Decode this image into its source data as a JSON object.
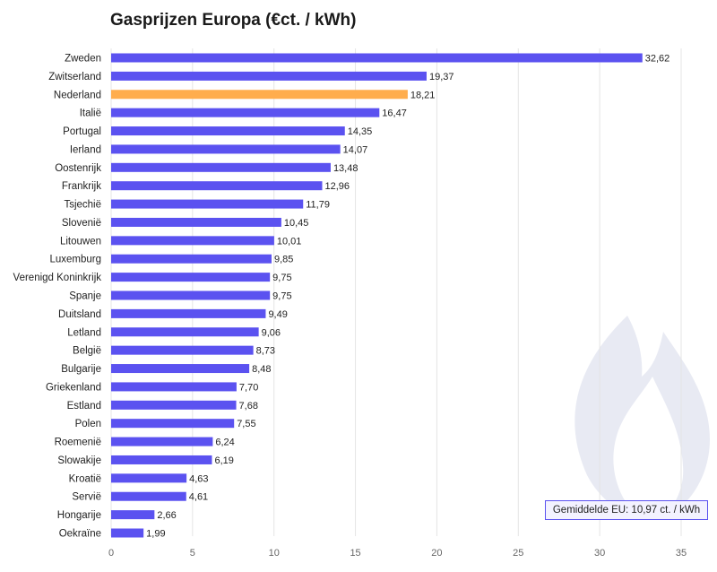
{
  "colors": {
    "bar": "#5b52f0",
    "highlight": "#ffad4d",
    "grid": "#e4e4e4",
    "watermark": "#e6e8f2"
  },
  "watermark_icon": "flame-icon",
  "chart_data": {
    "type": "bar",
    "orientation": "horizontal",
    "title": "Gasprijzen Europa (€ct. / kWh)",
    "xlabel": "",
    "ylabel": "",
    "xlim": [
      0,
      35
    ],
    "xticks": [
      0,
      5,
      10,
      15,
      20,
      25,
      30,
      35
    ],
    "grid": true,
    "highlight_category": "Nederland",
    "categories": [
      "Zweden",
      "Zwitserland",
      "Nederland",
      "Italië",
      "Portugal",
      "Ierland",
      "Oostenrijk",
      "Frankrijk",
      "Tsjechië",
      "Slovenië",
      "Litouwen",
      "Luxemburg",
      "Verenigd Koninkrijk",
      "Spanje",
      "Duitsland",
      "Letland",
      "België",
      "Bulgarije",
      "Griekenland",
      "Estland",
      "Polen",
      "Roemenië",
      "Slowakije",
      "Kroatië",
      "Servië",
      "Hongarije",
      "Oekraïne"
    ],
    "values": [
      32.62,
      19.37,
      18.21,
      16.47,
      14.35,
      14.07,
      13.48,
      12.96,
      11.79,
      10.45,
      10.01,
      9.85,
      9.75,
      9.75,
      9.49,
      9.06,
      8.73,
      8.48,
      7.7,
      7.68,
      7.55,
      6.24,
      6.19,
      4.63,
      4.61,
      2.66,
      1.99
    ],
    "value_labels": [
      "32,62",
      "19,37",
      "18,21",
      "16,47",
      "14,35",
      "14,07",
      "13,48",
      "12,96",
      "11,79",
      "10,45",
      "10,01",
      "9,85",
      "9,75",
      "9,75",
      "9,49",
      "9,06",
      "8,73",
      "8,48",
      "7,70",
      "7,68",
      "7,55",
      "6,24",
      "6,19",
      "4,63",
      "4,61",
      "2,66",
      "1,99"
    ],
    "annotation": "Gemiddelde EU: 10,97 ct. / kWh"
  }
}
